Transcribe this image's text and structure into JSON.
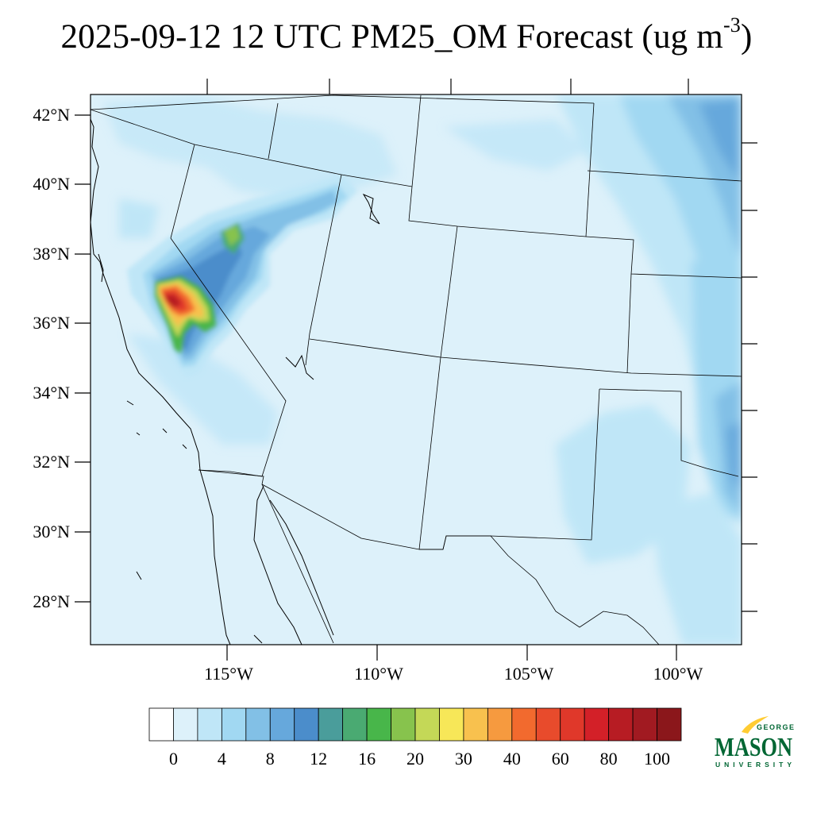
{
  "title": {
    "main": "2025-09-12 12 UTC PM25_OM Forecast (ug m",
    "superscript": "-3",
    "close": ")"
  },
  "map": {
    "projection": "lambert-conformal",
    "lat_ticks": [
      "42°N",
      "40°N",
      "38°N",
      "36°N",
      "34°N",
      "32°N",
      "30°N",
      "28°N"
    ],
    "lon_ticks": [
      "115°W",
      "110°W",
      "105°W",
      "100°W"
    ],
    "background_color": "#ddf1fa",
    "boundary_color": "#000000",
    "plume_location": "central/southern California, peak near 36.5°N 117°W"
  },
  "colorbar": {
    "labels": [
      "0",
      "4",
      "8",
      "12",
      "16",
      "20",
      "30",
      "40",
      "60",
      "80",
      "100"
    ],
    "colors": [
      "#ffffff",
      "#ddf1fa",
      "#bfe6f7",
      "#a1d8f2",
      "#82c0e6",
      "#66a8dc",
      "#4b8dcb",
      "#4a9d9b",
      "#4aaa72",
      "#48b64a",
      "#87c34d",
      "#c4d857",
      "#f7e758",
      "#f8c14e",
      "#f69a3f",
      "#f26a2e",
      "#e84b2c",
      "#e0382a",
      "#d32028",
      "#b71c23",
      "#a11a21",
      "#8b171b"
    ]
  },
  "logo": {
    "line1": "GEORGE",
    "line2": "MASON",
    "line3": "UNIVERSITY",
    "green": "#006633",
    "gold": "#ffcc33"
  }
}
